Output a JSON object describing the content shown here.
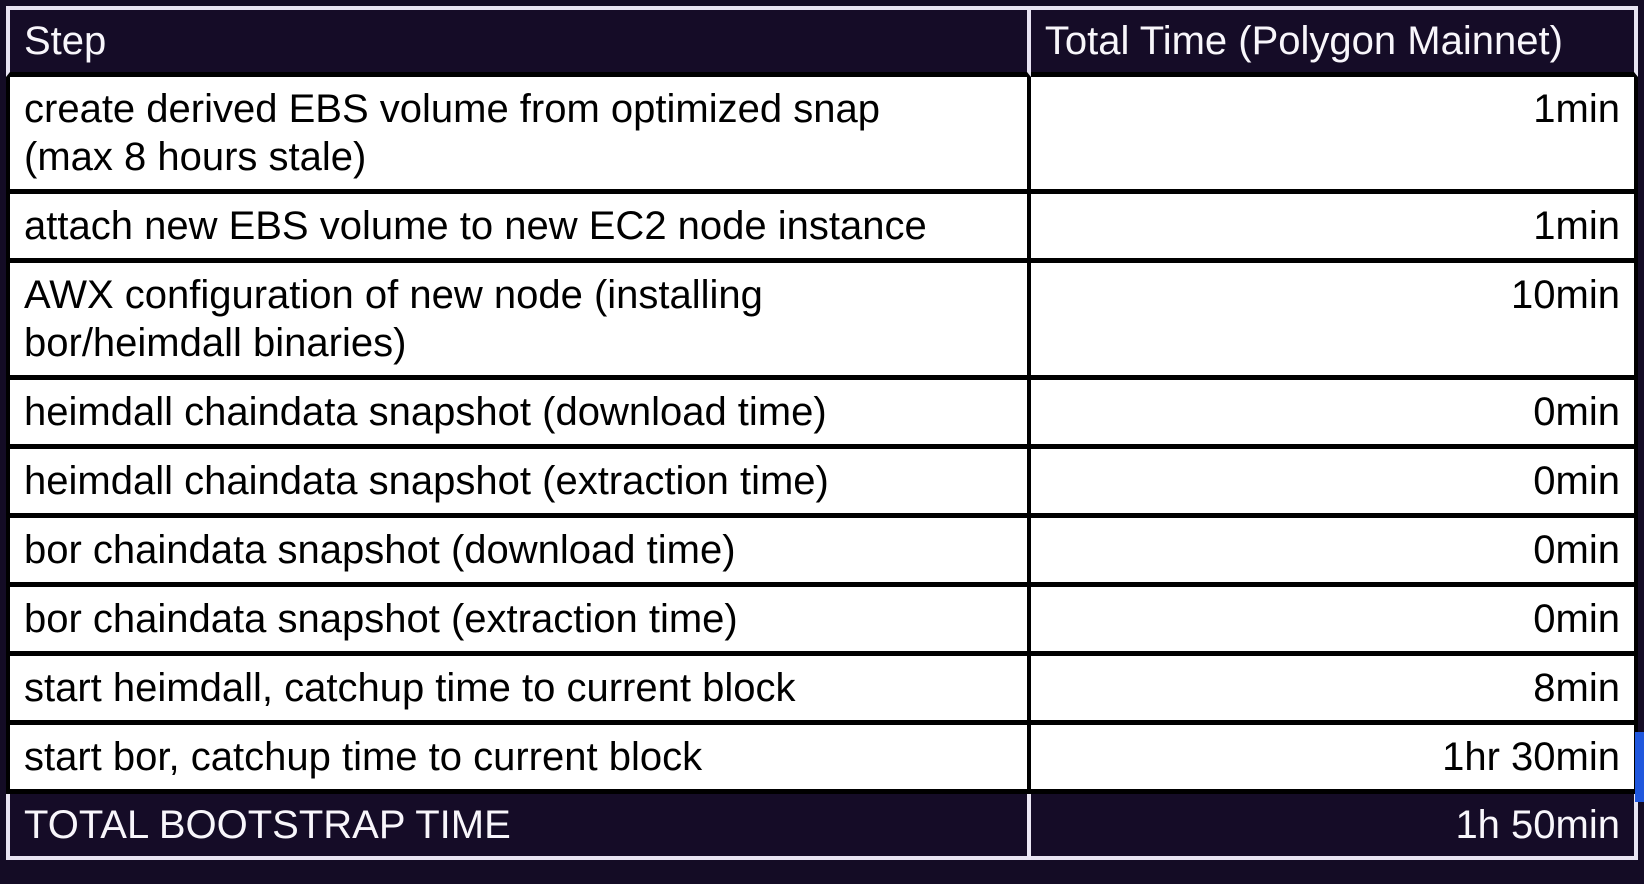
{
  "chart_data": {
    "type": "table",
    "columns": [
      "Step",
      "Total Time (Polygon Mainnet)"
    ],
    "rows": [
      {
        "step": "create derived EBS volume from optimized snap\n(max 8 hours stale)",
        "time": "1min"
      },
      {
        "step": "attach new EBS volume to new EC2 node instance",
        "time": "1min"
      },
      {
        "step": "AWX configuration of new node (installing\nbor/heimdall binaries)",
        "time": "10min"
      },
      {
        "step": "heimdall chaindata snapshot (download time)",
        "time": "0min"
      },
      {
        "step": "heimdall chaindata snapshot (extraction time)",
        "time": "0min"
      },
      {
        "step": "bor chaindata snapshot (download time)",
        "time": "0min"
      },
      {
        "step": "bor chaindata snapshot (extraction time)",
        "time": "0min"
      },
      {
        "step": "start heimdall, catchup time to current block",
        "time": "8min"
      },
      {
        "step": "start bor, catchup time to current block",
        "time": "1hr 30min"
      }
    ],
    "total_row": {
      "step": "TOTAL BOOTSTRAP TIME",
      "time": "1h 50min"
    }
  },
  "colors": {
    "page_background": "#140c25",
    "header_background": "#150c27",
    "light_border": "#e8e4f2",
    "body_border": "#000000",
    "body_background": "#ffffff",
    "header_text": "#f8f6fb",
    "body_text": "#000000",
    "selection_accent": "#2057dd"
  }
}
